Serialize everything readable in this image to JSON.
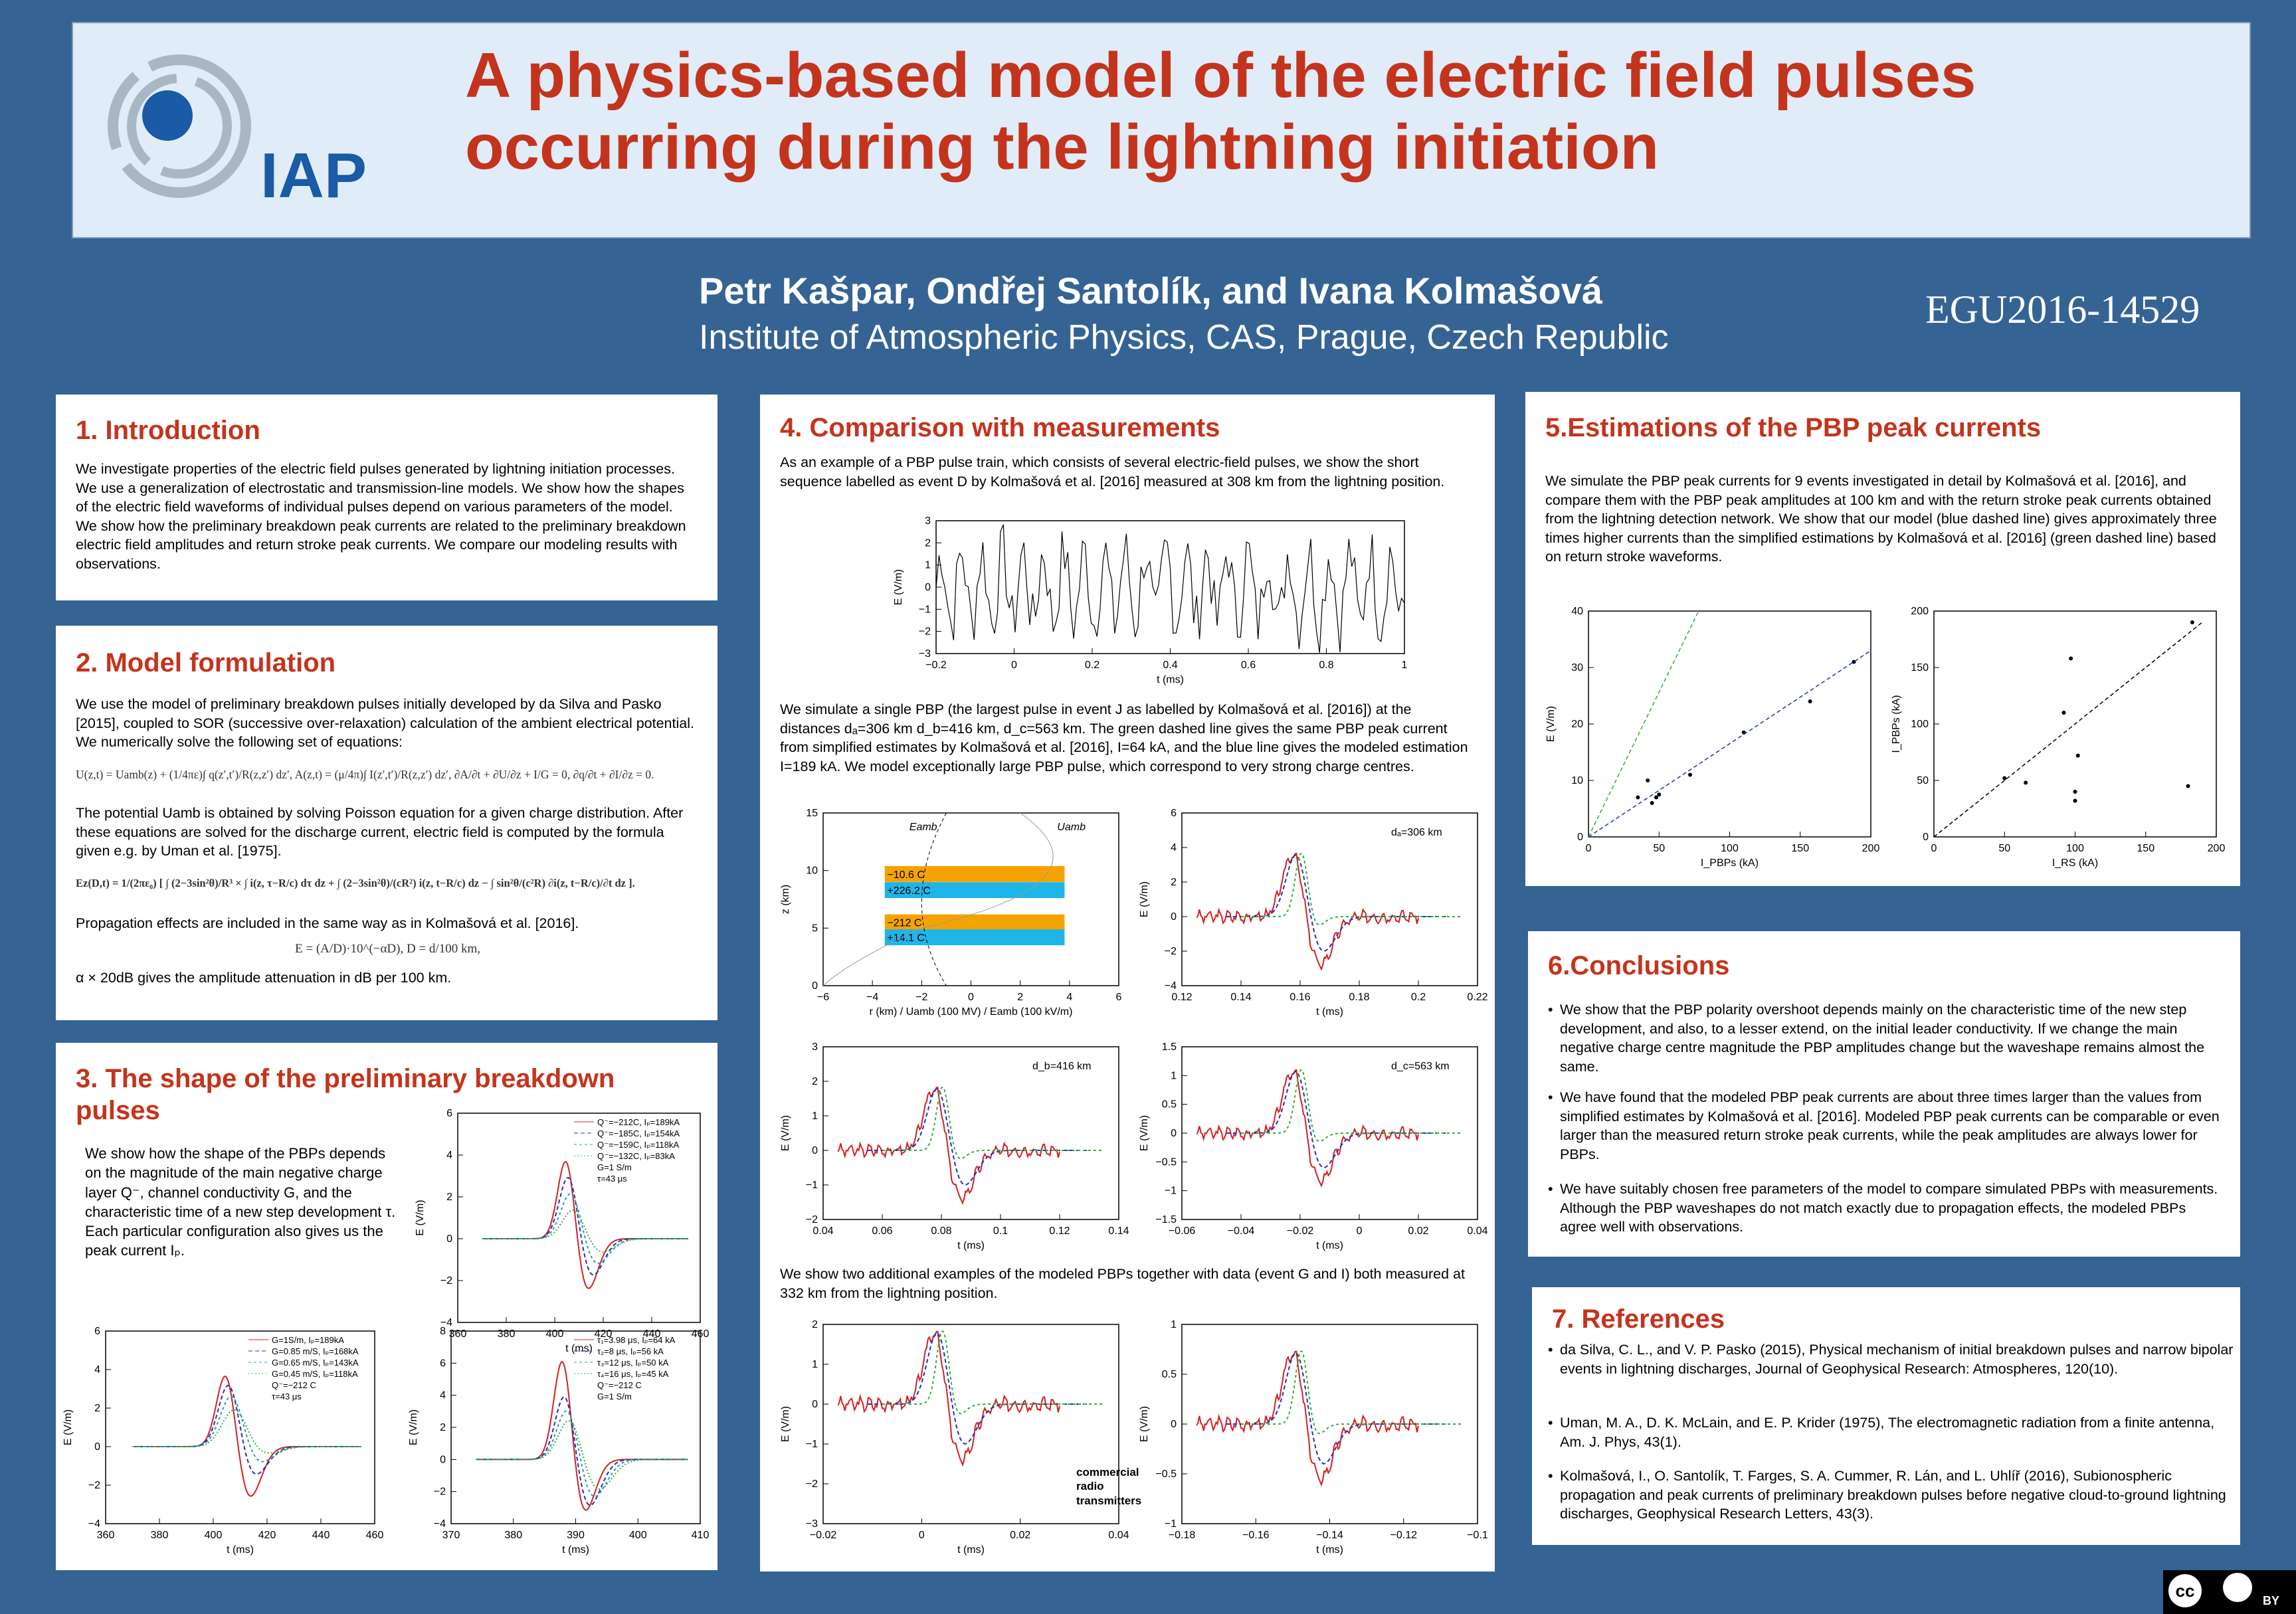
{
  "header": {
    "logo_text": "IAP",
    "title_line1": "A physics-based model of the electric field pulses",
    "title_line2": "occurring during the lightning initiation",
    "authors": "Petr Kašpar, Ondřej Santolík, and Ivana Kolmašová",
    "institution": "Institute of Atmospheric Physics, CAS, Prague, Czech Republic",
    "abstract_id": "EGU2016-14529"
  },
  "s1": {
    "title": "1. Introduction",
    "text": "We investigate properties of the electric field pulses generated by lightning initiation processes. We use a generalization of electrostatic and transmission-line models. We show how the shapes of the electric field waveforms of individual pulses depend on various parameters of the model. We show how the preliminary breakdown peak currents are related to the preliminary breakdown electric field amplitudes and return stroke peak currents. We compare our modeling results with observations."
  },
  "s2": {
    "title": "2. Model formulation",
    "p1": "We use the model of preliminary breakdown pulses initially developed by da Silva and Pasko [2015], coupled to SOR (successive over-relaxation) calculation of the ambient electrical potential. We numerically solve the following set of equations:",
    "eq1": "U(z,t) = Uamb(z) + (1/4πε)∫ q(z′,t′)/R(z,z′) dz′,   A(z,t) = (μ/4π)∫ I(z′,t′)/R(z,z′) dz′,   ∂A/∂t + ∂U/∂z + I/G = 0,   ∂q/∂t + ∂I/∂z = 0.",
    "p2": "The potential Uamb is obtained by solving Poisson equation for a given charge distribution. After these equations are solved for the discharge current, electric field is computed by the formula given e.g. by Uman et al. [1975].",
    "eq2": "Ez(D,t) = 1/(2πε₀) [ ∫ (2−3sin²θ)/R³ × ∫ i(z, τ−R/c) dτ dz + ∫ (2−3sin²θ)/(cR²) i(z, t−R/c) dz − ∫ sin²θ/(c²R) ∂i(z, t−R/c)/∂t dz ].",
    "p3": "Propagation effects are included in the same way as in Kolmašová et al. [2016].",
    "eq3": "E = (A/D)·10^(−αD),   D = d/100 km,",
    "p4": "α × 20dB gives the amplitude attenuation in dB per 100 km."
  },
  "s3": {
    "title": "3. The shape of the preliminary breakdown pulses",
    "text": "We show how the shape of the PBPs depends on the magnitude of the main negative charge layer Q⁻, channel conductivity G, and the characteristic time of a new step development τ. Each particular configuration also gives us the peak current Iₚ."
  },
  "s4": {
    "title": "4. Comparison with measurements",
    "p1": "As an example of a PBP pulse train, which consists of several electric-field pulses, we show the short sequence labelled as event D by Kolmašová et al. [2016] measured at 308 km from the lightning position.",
    "p2": "We simulate a single PBP (the largest pulse in event J as labelled by Kolmašová et al. [2016]) at the distances dₐ=306 km d_b=416 km, d_c=563 km. The green dashed line gives the same PBP peak current from simplified estimates by Kolmašová et al. [2016], I=64 kA, and the blue line gives the modeled estimation I=189 kA. We model exceptionally large PBP pulse, which correspond to very strong charge centres.",
    "p3": "We show two additional examples of the modeled PBPs together with data (event G and I) both measured at 332 km from the lightning position.",
    "annotation": "commercial radio transmitters"
  },
  "s5": {
    "title": "5.Estimations of the PBP peak currents",
    "text": "We simulate the PBP peak currents for 9 events investigated in detail by Kolmašová et al. [2016], and compare them with the PBP peak amplitudes at 100 km and with the return stroke peak currents obtained from the lightning detection network. We show that our model (blue dashed line) gives approximately three times higher currents than the simplified estimations by Kolmašová et al. [2016] (green dashed line) based on return stroke waveforms."
  },
  "s6": {
    "title": "6.Conclusions",
    "bullets": [
      "We show that the PBP polarity overshoot depends mainly on the characteristic time of the new step development, and also, to a lesser extend, on the initial leader conductivity. If we change the main negative charge centre magnitude the PBP amplitudes change but the waveshape remains almost the same.",
      "We have found that the modeled PBP peak currents are about three times larger than the values from simplified estimates by Kolmašová et al. [2016]. Modeled PBP peak currents can be comparable or even larger than the measured return stroke peak currents, while the peak amplitudes are always lower for PBPs.",
      "We have suitably chosen free parameters of the model to compare simulated PBPs with measurements. Although the PBP waveshapes do not match exactly due to propagation effects, the modeled PBPs agree well with observations."
    ]
  },
  "s7": {
    "title": "7. References",
    "refs": [
      "da Silva, C. L., and V. P. Pasko (2015), Physical mechanism of initial breakdown pulses and narrow bipolar events in lightning discharges, Journal of Geophysical Research: Atmospheres, 120(10).",
      "Uman, M. A., D. K. McLain, and E. P. Krider (1975), The electromagnetic radiation from a finite antenna, Am. J. Phys, 43(1).",
      "Kolmašová, I., O. Santolík, T. Farges, S. A. Cummer, R. Lán, and L. Uhlíř (2016), Subionospheric propagation and peak currents of preliminary breakdown pulses before negative cloud-to-ground lightning discharges, Geophysical Research Letters, 43(3)."
    ]
  },
  "license": {
    "cc": "cc",
    "by": "BY"
  },
  "chart_data": [
    {
      "id": "s3-plot-a",
      "type": "line",
      "xlabel": "t (ms)",
      "ylabel": "E (V/m)",
      "xlim": [
        360,
        460
      ],
      "ylim": [
        -4,
        6
      ],
      "xticks": [
        360,
        380,
        400,
        420,
        440,
        460
      ],
      "yticks": [
        -4,
        -2,
        0,
        2,
        4,
        6
      ],
      "legend": [
        "Q⁻=−212C, Iₚ=189kA",
        "Q⁻=−185C, Iₚ=154kA",
        "Q⁻=−159C, Iₚ=118kA",
        "Q⁻=−132C, Iₚ=83kA",
        "G=1 S/m",
        "τ=43 μs"
      ],
      "series": [
        {
          "peak": 4.2,
          "trough": -2.6
        },
        {
          "peak": 3.3,
          "trough": -1.9
        },
        {
          "peak": 2.4,
          "trough": -1.3
        },
        {
          "peak": 1.5,
          "trough": -0.7
        }
      ]
    },
    {
      "id": "s3-plot-b",
      "type": "line",
      "xlabel": "t (ms)",
      "ylabel": "E (V/m)",
      "xlim": [
        360,
        460
      ],
      "ylim": [
        -4,
        6
      ],
      "xticks": [
        360,
        380,
        400,
        420,
        440,
        460
      ],
      "yticks": [
        -4,
        -2,
        0,
        2,
        4,
        6
      ],
      "legend": [
        "G=1S/m, Iₚ=189kA",
        "G=0.85 m/S, Iₚ=168kA",
        "G=0.65 m/S, Iₚ=143kA",
        "G=0.45 m/S, Iₚ=118kA",
        "Q⁻=−212 C",
        "τ=43 μs"
      ],
      "series": [
        {
          "peak": 4.2,
          "trough": -2.8
        },
        {
          "peak": 3.5,
          "trough": -1.6
        },
        {
          "peak": 2.8,
          "trough": -0.9
        },
        {
          "peak": 2.0,
          "trough": -0.4
        }
      ]
    },
    {
      "id": "s3-plot-c",
      "type": "line",
      "xlabel": "t (ms)",
      "ylabel": "E (V/m)",
      "xlim": [
        370,
        410
      ],
      "ylim": [
        -4,
        8
      ],
      "xticks": [
        370,
        380,
        390,
        400,
        410
      ],
      "yticks": [
        -4,
        -2,
        0,
        2,
        4,
        6,
        8
      ],
      "legend": [
        "τ₁=3.98 μs, Iₚ=64 kA",
        "τ₂=8 μs, Iₚ=56 kA",
        "τ₃=12 μs, Iₚ=50 kA",
        "τ₄=16 μs, Iₚ=45 kA",
        "Q⁻=−212 C",
        "G=1 S/m"
      ],
      "series": [
        {
          "peak": 6.8,
          "trough": -3.5
        },
        {
          "peak": 4.5,
          "trough": -3.1
        },
        {
          "peak": 3.5,
          "trough": -2.5
        },
        {
          "peak": 2.8,
          "trough": -2.0
        }
      ]
    },
    {
      "id": "s4-event-d",
      "type": "line",
      "xlabel": "t (ms)",
      "ylabel": "E (V/m)",
      "xlim": [
        -0.2,
        1.0
      ],
      "ylim": [
        -3,
        3
      ],
      "xticks": [
        -0.2,
        0.0,
        0.2,
        0.4,
        0.6,
        0.8,
        1.0
      ],
      "yticks": [
        -3,
        -2,
        -1,
        0,
        1,
        2,
        3
      ]
    },
    {
      "id": "s4-charge",
      "type": "line",
      "xlabel": "r (km) / Uamb (100 MV) / Eamb (100 kV/m)",
      "ylabel": "z (km)",
      "xlim": [
        -6,
        6
      ],
      "ylim": [
        0,
        15
      ],
      "xticks": [
        -6,
        -4,
        -2,
        0,
        2,
        4,
        6
      ],
      "yticks": [
        0,
        5,
        10,
        15
      ],
      "labels": [
        "Eamb",
        "Uamb"
      ],
      "charges": [
        {
          "label": "−10.6 C",
          "z": 9.7
        },
        {
          "label": "+226.2 C",
          "z": 8.3
        },
        {
          "label": "−212 C",
          "z": 5.5
        },
        {
          "label": "+14.1 C",
          "z": 4.2
        }
      ]
    },
    {
      "id": "s4-da",
      "type": "line",
      "xlabel": "t (ms)",
      "ylabel": "E (V/m)",
      "label": "dₐ=306 km",
      "xlim": [
        0.12,
        0.22
      ],
      "ylim": [
        -4,
        6
      ],
      "xticks": [
        0.12,
        0.14,
        0.16,
        0.18,
        0.2,
        0.22
      ],
      "yticks": [
        -4,
        -2,
        0,
        2,
        4,
        6
      ]
    },
    {
      "id": "s4-db",
      "type": "line",
      "xlabel": "t (ms)",
      "ylabel": "E (V/m)",
      "label": "d_b=416 km",
      "xlim": [
        0.04,
        0.14
      ],
      "ylim": [
        -2,
        3
      ],
      "xticks": [
        0.04,
        0.06,
        0.08,
        0.1,
        0.12,
        0.14
      ],
      "yticks": [
        -2,
        -1,
        0,
        1,
        2,
        3
      ]
    },
    {
      "id": "s4-dc",
      "type": "line",
      "xlabel": "t (ms)",
      "ylabel": "E (V/m)",
      "label": "d_c=563 km",
      "xlim": [
        -0.06,
        0.04
      ],
      "ylim": [
        -1.5,
        1.5
      ],
      "xticks": [
        -0.06,
        -0.04,
        -0.02,
        0.0,
        0.02,
        0.04
      ],
      "yticks": [
        -1.5,
        -1.0,
        -0.5,
        0.0,
        0.5,
        1.0,
        1.5
      ]
    },
    {
      "id": "s4-g",
      "type": "line",
      "xlabel": "t (ms)",
      "ylabel": "E (V/m)",
      "xlim": [
        -0.02,
        0.04
      ],
      "ylim": [
        -3,
        2
      ],
      "xticks": [
        -0.02,
        0.0,
        0.02,
        0.04
      ],
      "yticks": [
        -3,
        -2,
        -1,
        0,
        1,
        2
      ]
    },
    {
      "id": "s4-i",
      "type": "line",
      "xlabel": "t (ms)",
      "ylabel": "E (V/m)",
      "xlim": [
        -0.18,
        -0.1
      ],
      "ylim": [
        -1.0,
        1.0
      ],
      "xticks": [
        -0.18,
        -0.16,
        -0.14,
        -0.12,
        -0.1
      ],
      "yticks": [
        -1.0,
        -0.5,
        0.0,
        0.5,
        1.0
      ]
    },
    {
      "id": "s5-left",
      "type": "scatter",
      "xlabel": "I_PBPs (kA)",
      "ylabel": "E (V/m)",
      "xlim": [
        0,
        200
      ],
      "ylim": [
        0,
        40
      ],
      "xticks": [
        0,
        50,
        100,
        150,
        200
      ],
      "yticks": [
        0,
        10,
        20,
        30,
        40
      ],
      "points": [
        [
          35,
          7
        ],
        [
          42,
          10
        ],
        [
          45,
          6
        ],
        [
          48,
          7
        ],
        [
          50,
          7.5
        ],
        [
          72,
          11
        ],
        [
          110,
          18.5
        ],
        [
          157,
          24
        ],
        [
          188,
          31
        ]
      ]
    },
    {
      "id": "s5-right",
      "type": "scatter",
      "xlabel": "I_RS (kA)",
      "ylabel": "I_PBPs (kA)",
      "xlim": [
        0,
        200
      ],
      "ylim": [
        0,
        200
      ],
      "xticks": [
        0,
        50,
        100,
        150,
        200
      ],
      "yticks": [
        0,
        50,
        100,
        150,
        200
      ],
      "points": [
        [
          50,
          52
        ],
        [
          65,
          48
        ],
        [
          92,
          110
        ],
        [
          97,
          158
        ],
        [
          100,
          40
        ],
        [
          100,
          32
        ],
        [
          102,
          72
        ],
        [
          180,
          45
        ],
        [
          183,
          190
        ]
      ]
    }
  ]
}
